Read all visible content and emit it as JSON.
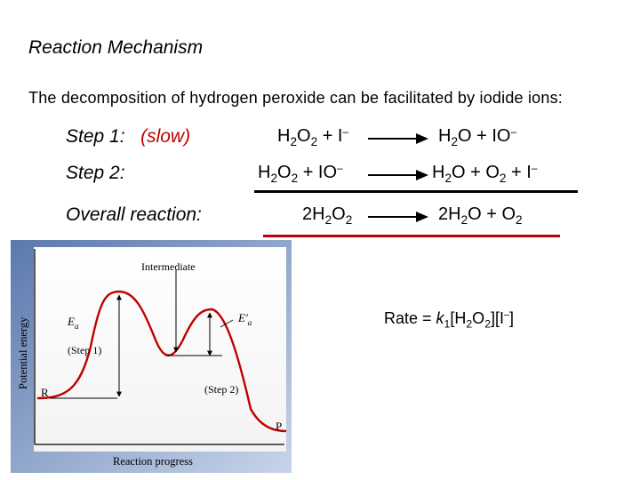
{
  "title": "Reaction Mechanism",
  "intro": "The decomposition of hydrogen peroxide can be facilitated by iodide ions:",
  "steps": [
    {
      "label": "Step 1:",
      "note": "(slow)"
    },
    {
      "label": "Step 2:",
      "note": ""
    },
    {
      "label": "Overall reaction:",
      "note": ""
    }
  ],
  "equations": {
    "step1": {
      "left": "H2O2 + I–",
      "right": "H2O + IO–"
    },
    "step2": {
      "left": "H2O2 + IO–",
      "right": "H2O + O2 + I–"
    },
    "overall": {
      "left": "2H2O2",
      "right": "2H2O + O2"
    }
  },
  "rate_law": "Rate = k1[H2O2][I–]",
  "diagram": {
    "intermediate_label": "Intermediate",
    "ea1_label": "Ea",
    "ea2_label": "E′a",
    "step1_label": "(Step 1)",
    "step2_label": "(Step 2)",
    "reactant_label": "R",
    "product_label": "P",
    "y_axis_label": "Potential energy",
    "x_axis_label": "Reaction progress"
  },
  "colors": {
    "accent_red": "#c00000",
    "frame_gradient_start": "#5b79ad",
    "frame_gradient_end": "#c8d4ea"
  }
}
